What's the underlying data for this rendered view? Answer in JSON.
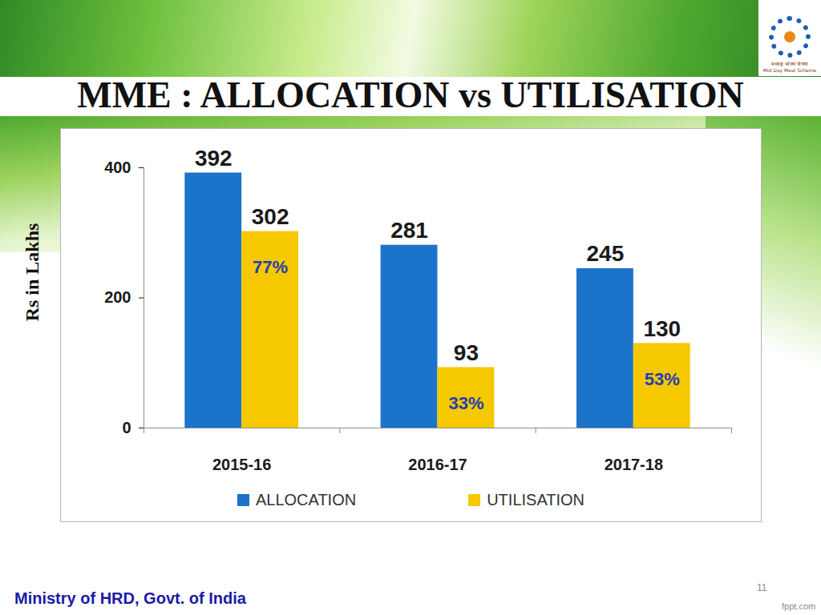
{
  "chart_data": {
    "type": "bar",
    "title": "MME : ALLOCATION vs UTILISATION",
    "y_label": "Rs in Lakhs",
    "categories": [
      "2015-16",
      "2016-17",
      "2017-18"
    ],
    "series": [
      {
        "name": "ALLOCATION",
        "color": "#1b74c9",
        "values": [
          392,
          281,
          245
        ]
      },
      {
        "name": "UTILISATION",
        "color": "#f5c800",
        "values": [
          302,
          93,
          130
        ],
        "percent_values": [
          77,
          33,
          53
        ],
        "percent_labels": [
          "77%",
          "33%",
          "53%"
        ]
      }
    ],
    "ylim": [
      0,
      400
    ],
    "yticks": [
      0,
      200,
      400
    ],
    "grid": false,
    "data_labels": true,
    "legend": "bottom"
  },
  "slide": {
    "footer": "Ministry of HRD, Govt. of India",
    "page_number": "11",
    "credit": "fppt.com",
    "logo_text": [
      "मध्याह्न भोजन योजना",
      "Mid Day Meal Scheme"
    ]
  }
}
